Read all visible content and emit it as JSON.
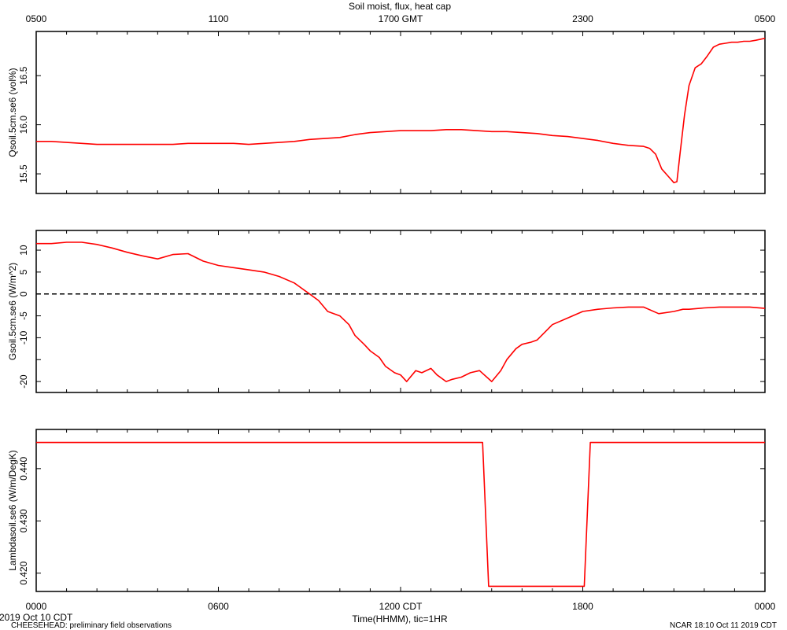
{
  "chart_data": {
    "type": "line",
    "title": "Soil moist, flux, heat cap",
    "line_color": "#ff0000",
    "top_axis": {
      "ticks": [
        "0500",
        "1100",
        "1700 GMT",
        "2300",
        "0500"
      ]
    },
    "bottom_axis": {
      "ticks": [
        "0000",
        "0600",
        "1200 CDT",
        "1800",
        "0000"
      ],
      "label": "Time(HHMM), tic=1HR",
      "range_hours": [
        0,
        24
      ]
    },
    "panels": [
      {
        "ylabel": "Qsoil.5cm.se6 (vol%)",
        "ylim": [
          15.3,
          16.95
        ],
        "yticks": [
          15.5,
          16.0,
          16.5
        ],
        "ytick_labels": [
          "15.5",
          "16.0",
          "16.5"
        ],
        "series": [
          {
            "x": [
              0,
              0.5,
              1,
              1.5,
              2,
              2.5,
              3,
              3.5,
              4,
              4.5,
              5,
              5.5,
              6,
              6.5,
              7,
              7.5,
              8,
              8.5,
              9,
              9.5,
              10,
              10.5,
              11,
              11.5,
              12,
              12.5,
              13,
              13.5,
              14,
              14.5,
              15,
              15.5,
              16,
              16.5,
              17,
              17.5,
              18,
              18.5,
              19,
              19.5,
              20,
              20.2,
              20.4,
              20.6,
              20.8,
              21,
              21.1,
              21.2,
              21.35,
              21.5,
              21.7,
              21.9,
              22.1,
              22.3,
              22.5,
              22.7,
              22.9,
              23.1,
              23.3,
              23.5,
              23.7,
              24
            ],
            "y": [
              15.83,
              15.83,
              15.82,
              15.81,
              15.8,
              15.8,
              15.8,
              15.8,
              15.8,
              15.8,
              15.81,
              15.81,
              15.81,
              15.81,
              15.8,
              15.81,
              15.82,
              15.83,
              15.85,
              15.86,
              15.87,
              15.9,
              15.92,
              15.93,
              15.94,
              15.94,
              15.94,
              15.95,
              15.95,
              15.94,
              15.93,
              15.93,
              15.92,
              15.91,
              15.89,
              15.88,
              15.86,
              15.84,
              15.81,
              15.79,
              15.78,
              15.76,
              15.7,
              15.55,
              15.48,
              15.41,
              15.42,
              15.7,
              16.1,
              16.4,
              16.58,
              16.62,
              16.7,
              16.79,
              16.82,
              16.83,
              16.84,
              16.84,
              16.85,
              16.85,
              16.86,
              16.88
            ]
          }
        ]
      },
      {
        "ylabel": "Gsoil.5cm.se6 (W/m^2)",
        "ylim": [
          -22.5,
          14.5
        ],
        "yticks": [
          -20,
          -15,
          -10,
          -5,
          0,
          5,
          10
        ],
        "ytick_labels": [
          "-20",
          "",
          "-10",
          "-5",
          "0",
          "5",
          "10"
        ],
        "zero_line": true,
        "series": [
          {
            "x": [
              0,
              0.5,
              1,
              1.5,
              2,
              2.5,
              3,
              3.5,
              4,
              4.5,
              5,
              5.5,
              6,
              6.5,
              7,
              7.5,
              8,
              8.5,
              9,
              9.3,
              9.6,
              10,
              10.3,
              10.5,
              10.8,
              11,
              11.3,
              11.5,
              11.8,
              12,
              12.2,
              12.5,
              12.7,
              13,
              13.2,
              13.5,
              13.7,
              14,
              14.3,
              14.6,
              15,
              15.3,
              15.5,
              15.8,
              16,
              16.3,
              16.5,
              17,
              17.5,
              18,
              18.5,
              19,
              19.5,
              20,
              20.5,
              21,
              21.3,
              21.5,
              22,
              22.5,
              23,
              23.5,
              24
            ],
            "y": [
              11.5,
              11.5,
              11.8,
              11.8,
              11.3,
              10.5,
              9.5,
              8.7,
              8.0,
              9.0,
              9.2,
              7.5,
              6.5,
              6.0,
              5.5,
              5.0,
              4.0,
              2.5,
              0,
              -1.5,
              -4.0,
              -5.0,
              -7.0,
              -9.5,
              -11.5,
              -13.0,
              -14.5,
              -16.5,
              -18.0,
              -18.5,
              -20.0,
              -17.5,
              -18.0,
              -17.0,
              -18.5,
              -20.0,
              -19.5,
              -19.0,
              -18.0,
              -17.5,
              -20.0,
              -17.5,
              -15.0,
              -12.5,
              -11.5,
              -11.0,
              -10.5,
              -7.0,
              -5.5,
              -4.0,
              -3.5,
              -3.2,
              -3.0,
              -3.0,
              -4.5,
              -4.0,
              -3.5,
              -3.5,
              -3.2,
              -3.0,
              -3.0,
              -3.0,
              -3.3
            ]
          }
        ]
      },
      {
        "ylabel": "Lambdasoil.se6 (W/m/DegK)",
        "ylim": [
          0.4165,
          0.4475
        ],
        "yticks": [
          0.42,
          0.43,
          0.44
        ],
        "ytick_labels": [
          "0.420",
          "0.430",
          "0.440"
        ],
        "series": [
          {
            "x": [
              0,
              14.7,
              14.9,
              18.05,
              18.25,
              24
            ],
            "y": [
              0.445,
              0.445,
              0.4175,
              0.4175,
              0.445,
              0.445
            ]
          }
        ]
      }
    ]
  },
  "footer": {
    "date_left": "2019 Oct 10 CDT",
    "project_left": "CHEESEHEAD: preliminary field observations",
    "stamp_right": "NCAR 18:10 Oct 11 2019 CDT"
  }
}
